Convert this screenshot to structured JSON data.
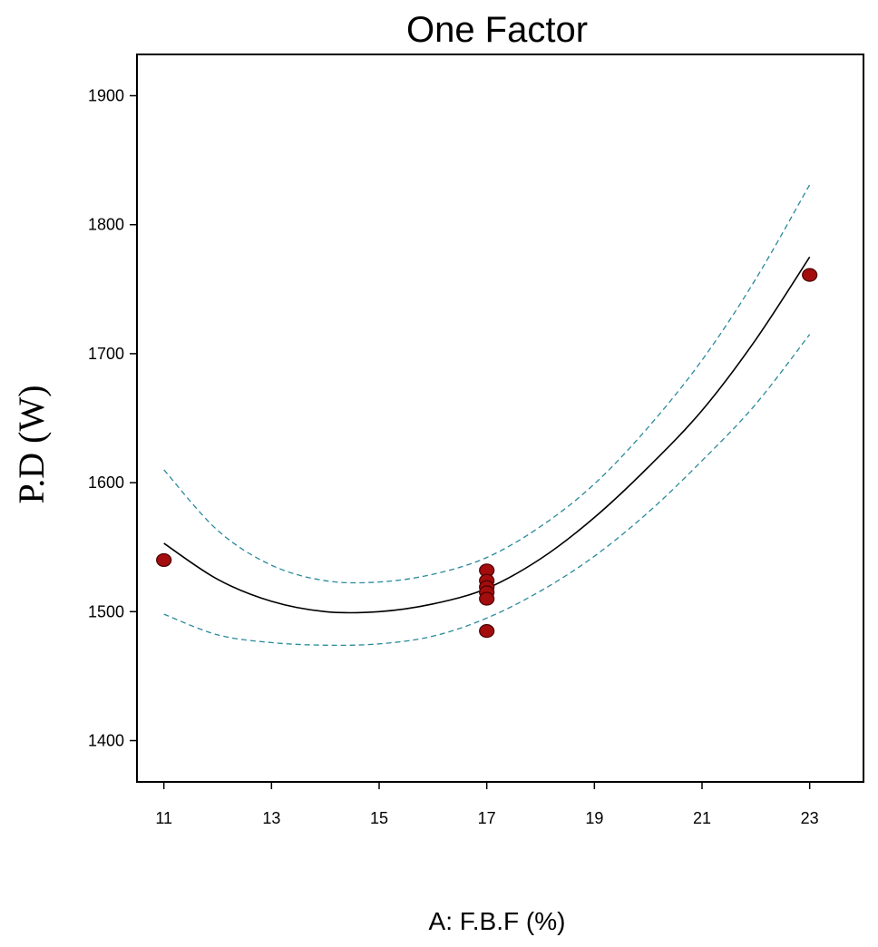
{
  "chart_data": {
    "type": "line",
    "title": "One Factor",
    "xlabel": "A: F.B.F (%)",
    "ylabel": "P.D (W)",
    "xlim": [
      10.5,
      24
    ],
    "ylim": [
      1368,
      1932
    ],
    "xticks": [
      "11",
      "13",
      "15",
      "17",
      "19",
      "21",
      "23"
    ],
    "yticks": [
      "1400",
      "1500",
      "1600",
      "1700",
      "1800",
      "1900"
    ],
    "grid": false,
    "series": [
      {
        "role": "fit",
        "color": "#000000",
        "dash": "solid",
        "x": [
          11,
          12,
          13,
          14,
          15,
          16,
          17,
          18,
          19,
          20,
          21,
          22,
          23
        ],
        "y": [
          1553,
          1525,
          1508,
          1500,
          1500,
          1506,
          1518,
          1541,
          1573,
          1612,
          1656,
          1711,
          1775
        ]
      },
      {
        "role": "confidence-upper",
        "color": "#2a8a9a",
        "dash": "dashed",
        "x": [
          11,
          12,
          13,
          14,
          15,
          16,
          17,
          18,
          19,
          20,
          21,
          22,
          23
        ],
        "y": [
          1610,
          1563,
          1536,
          1524,
          1523,
          1529,
          1542,
          1566,
          1599,
          1643,
          1695,
          1758,
          1831
        ]
      },
      {
        "role": "confidence-lower",
        "color": "#2a8a9a",
        "dash": "dashed",
        "x": [
          11,
          12,
          13,
          14,
          15,
          16,
          17,
          18,
          19,
          20,
          21,
          22,
          23
        ],
        "y": [
          1498,
          1482,
          1476,
          1474,
          1475,
          1481,
          1495,
          1516,
          1543,
          1577,
          1617,
          1661,
          1715
        ]
      }
    ],
    "points": {
      "color": "#a30d0d",
      "x": [
        11,
        17,
        17,
        17,
        17,
        17,
        17,
        23
      ],
      "y": [
        1540,
        1532,
        1524,
        1519,
        1515,
        1510,
        1485,
        1761
      ]
    }
  }
}
